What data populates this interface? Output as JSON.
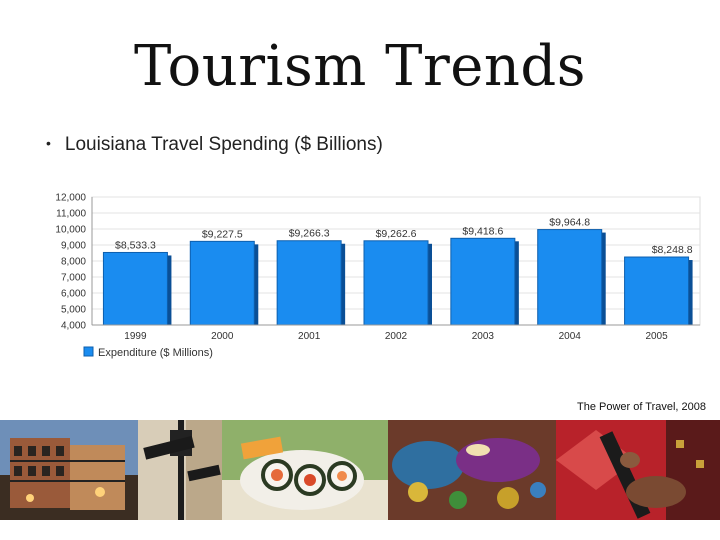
{
  "slide": {
    "title": "Tourism Trends",
    "bullet": "Louisiana Travel Spending ($ Billions)",
    "source": "The Power of Travel, 2008"
  },
  "chart_data": {
    "type": "bar",
    "categories": [
      "1999",
      "2000",
      "2001",
      "2002",
      "2003",
      "2004",
      "2005"
    ],
    "series": [
      {
        "name": "Expenditure ($ Millions)",
        "values": [
          8533.3,
          9227.5,
          9266.3,
          9262.6,
          9418.6,
          9964.8,
          8248.8
        ],
        "color": "#1a8cf0"
      }
    ],
    "value_labels": [
      "$8,533.3",
      "$9,227.5",
      "$9,266.3",
      "$9,262.6",
      "$9,418.6",
      "$9,964.8",
      "$8,248.8"
    ],
    "y_ticks": [
      "4,000",
      "5,000",
      "6,000",
      "7,000",
      "8,000",
      "9,000",
      "10,000",
      "11,000",
      "12,000"
    ],
    "ylim": [
      4000,
      12000
    ],
    "grid": true,
    "legend": "bottom-left"
  }
}
